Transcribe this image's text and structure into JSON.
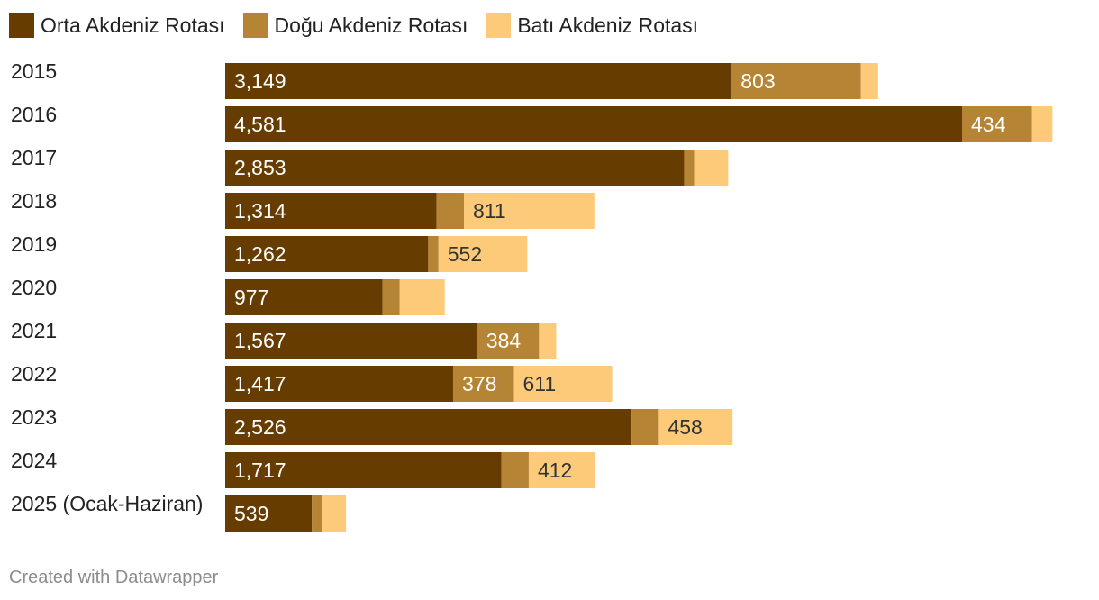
{
  "chart_data": {
    "type": "bar",
    "orientation": "horizontal",
    "stacked": true,
    "title": "",
    "xlabel": "",
    "ylabel": "",
    "xlim": [
      0,
      5365
    ],
    "grid": false,
    "legend_position": "top-left",
    "categories": [
      "2015",
      "2016",
      "2017",
      "2018",
      "2019",
      "2020",
      "2021",
      "2022",
      "2023",
      "2024",
      "2025 (Ocak-Haziran)"
    ],
    "series": [
      {
        "name": "Orta Akdeniz Rotası",
        "color": "#663c00",
        "label_color": "#ffffff",
        "values": [
          3149,
          4581,
          2853,
          1314,
          1262,
          977,
          1567,
          1417,
          2526,
          1717,
          539
        ],
        "labels": [
          "3,149",
          "4,581",
          "2,853",
          "1,314",
          "1,262",
          "977",
          "1,567",
          "1,417",
          "2,526",
          "1,717",
          "539"
        ]
      },
      {
        "name": "Doğu Akdeniz Rotası",
        "color": "#b58434",
        "label_color": "#ffffff",
        "values": [
          803,
          434,
          62,
          170,
          64,
          108,
          384,
          378,
          170,
          170,
          62
        ],
        "labels": [
          "803",
          "434",
          "",
          "",
          "",
          "",
          "384",
          "378",
          "",
          "",
          ""
        ]
      },
      {
        "name": "Batı Akdeniz Rotası",
        "color": "#fdca79",
        "label_color": "#333333",
        "values": [
          107,
          128,
          212,
          811,
          552,
          280,
          107,
          611,
          458,
          412,
          150
        ],
        "labels": [
          "",
          "",
          "",
          "811",
          "552",
          "",
          "",
          "611",
          "458",
          "412",
          ""
        ]
      }
    ]
  },
  "footer": {
    "credit": "Created with Datawrapper"
  }
}
